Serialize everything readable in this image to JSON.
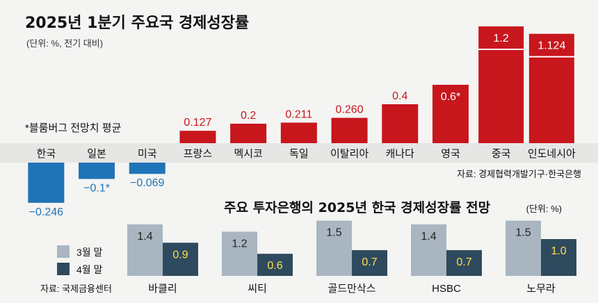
{
  "title": "2025년 1분기 주요국 경제성장률",
  "unit": "(단위: %, 전기 대비)",
  "footnote": "*블룸버그 전망치 평균",
  "source1": "자료: 경제협력개발기구·한국은행",
  "colors": {
    "positive": "#c8161d",
    "negative": "#1f73b7",
    "march": "#a9b6c1",
    "april": "#2e4a5e",
    "axis_band": "#e6e6e4"
  },
  "chart_data": [
    {
      "type": "bar",
      "title": "2025년 1분기 주요국 경제성장률",
      "subtitle": "(단위: %, 전기 대비)",
      "categories": [
        "한국",
        "일본",
        "미국",
        "프랑스",
        "멕시코",
        "독일",
        "이탈리아",
        "캐나다",
        "영국",
        "중국",
        "인도네시아"
      ],
      "values": [
        -0.246,
        -0.1,
        -0.069,
        0.127,
        0.2,
        0.211,
        0.26,
        0.4,
        0.6,
        1.2,
        1.124
      ],
      "labels": [
        "−0.246",
        "−0.1*",
        "−0.069",
        "0.127",
        "0.2",
        "0.211",
        "0.260",
        "0.4",
        "0.6*",
        "1.2",
        "1.124"
      ],
      "xlabel": "",
      "ylabel": "",
      "grid": false,
      "annotations": [
        "*블룸버그 전망치 평균",
        "자료: 경제협력개발기구·한국은행"
      ]
    },
    {
      "type": "bar",
      "title": "주요 투자은행의 2025년 한국 경제성장률 전망",
      "subtitle": "(단위: %)",
      "categories": [
        "바클리",
        "씨티",
        "골드만삭스",
        "HSBC",
        "노무라"
      ],
      "series": [
        {
          "name": "3월 말",
          "values": [
            1.4,
            1.2,
            1.5,
            1.4,
            1.5
          ],
          "labels": [
            "1.4",
            "1.2",
            "1.5",
            "1.4",
            "1.5"
          ]
        },
        {
          "name": "4월 말",
          "values": [
            0.9,
            0.6,
            0.7,
            0.7,
            1.0
          ],
          "labels": [
            "0.9",
            "0.6",
            "0.7",
            "0.7",
            "1.0"
          ]
        }
      ],
      "legend": "bottom-left",
      "source": "자료: 국제금융센터"
    }
  ]
}
